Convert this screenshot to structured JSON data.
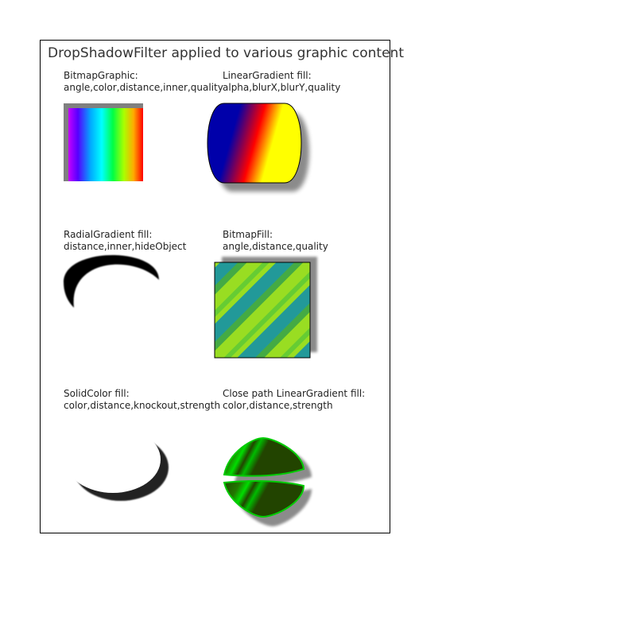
{
  "title": "DropShadowFilter applied to various graphic content",
  "panels": [
    {
      "heading": "BitmapGraphic:",
      "props": "angle,color,distance,inner,quality"
    },
    {
      "heading": "LinearGradient fill:",
      "props": "alpha,blurX,blurY,quality"
    },
    {
      "heading": "RadialGradient fill:",
      "props": "distance,inner,hideObject"
    },
    {
      "heading": "BitmapFill:",
      "props": "angle,distance,quality"
    },
    {
      "heading": "SolidColor fill:",
      "props": "color,distance,knockout,strength"
    },
    {
      "heading": "Close path LinearGradient fill:",
      "props": "color,distance,strength"
    }
  ],
  "colors": {
    "shadow": "#000000",
    "border": "#000000",
    "linear_stops": [
      "#0000aa",
      "#ff0000",
      "#ffff00"
    ],
    "bitmap_stripes": [
      "#44bb44",
      "#99dd22",
      "#229999"
    ],
    "leaf_stroke": "#00cc00",
    "leaf_fill": "#224400"
  }
}
